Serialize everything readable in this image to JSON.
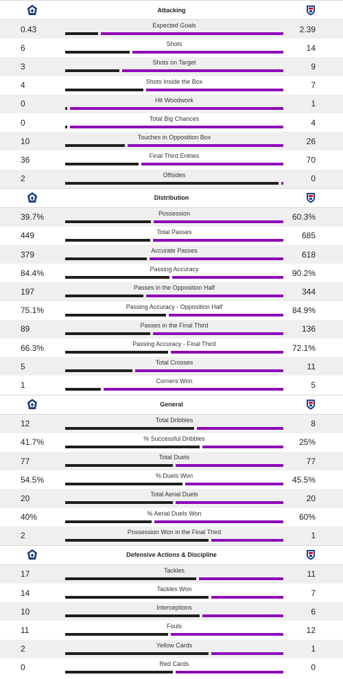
{
  "colors": {
    "home": "#1e1e1e",
    "away": "#8e05b6",
    "shade": "#efefef"
  },
  "icons": {
    "home_crest": "home-team-crest-icon",
    "away_crest": "away-team-crest-icon"
  },
  "sections": [
    {
      "title": "Attacking",
      "rows": [
        {
          "name": "Expected Goals",
          "home": "0.43",
          "away": "2.39",
          "h": 0.43,
          "a": 2.39
        },
        {
          "name": "Shots",
          "home": "6",
          "away": "14",
          "h": 6,
          "a": 14
        },
        {
          "name": "Shots on Target",
          "home": "3",
          "away": "9",
          "h": 3,
          "a": 9
        },
        {
          "name": "Shots Inside the Box",
          "home": "4",
          "away": "7",
          "h": 4,
          "a": 7
        },
        {
          "name": "Hit Woodwork",
          "home": "0",
          "away": "1",
          "h": 0,
          "a": 1
        },
        {
          "name": "Total Big Chances",
          "home": "0",
          "away": "4",
          "h": 0,
          "a": 4
        },
        {
          "name": "Touches in Opposition Box",
          "home": "10",
          "away": "26",
          "h": 10,
          "a": 26
        },
        {
          "name": "Final Third Entries",
          "home": "36",
          "away": "70",
          "h": 36,
          "a": 70
        },
        {
          "name": "Offsides",
          "home": "2",
          "away": "0",
          "h": 2,
          "a": 0
        }
      ]
    },
    {
      "title": "Distribution",
      "rows": [
        {
          "name": "Possession",
          "home": "39.7%",
          "away": "60.3%",
          "h": 39.7,
          "a": 60.3
        },
        {
          "name": "Total Passes",
          "home": "449",
          "away": "685",
          "h": 449,
          "a": 685
        },
        {
          "name": "Accurate Passes",
          "home": "379",
          "away": "618",
          "h": 379,
          "a": 618
        },
        {
          "name": "Passing Accuracy",
          "home": "84.4%",
          "away": "90.2%",
          "h": 84.4,
          "a": 90.2
        },
        {
          "name": "Passes in the Opposition Half",
          "home": "197",
          "away": "344",
          "h": 197,
          "a": 344
        },
        {
          "name": "Passing Accuracy - Opposition Half",
          "home": "75.1%",
          "away": "84.9%",
          "h": 75.1,
          "a": 84.9
        },
        {
          "name": "Passes in the Final Third",
          "home": "89",
          "away": "136",
          "h": 89,
          "a": 136
        },
        {
          "name": "Passing Accuracy - Final Third",
          "home": "66.3%",
          "away": "72.1%",
          "h": 66.3,
          "a": 72.1
        },
        {
          "name": "Total Crosses",
          "home": "5",
          "away": "11",
          "h": 5,
          "a": 11
        },
        {
          "name": "Corners Won",
          "home": "1",
          "away": "5",
          "h": 1,
          "a": 5
        }
      ]
    },
    {
      "title": "General",
      "rows": [
        {
          "name": "Total Dribbles",
          "home": "12",
          "away": "8",
          "h": 12,
          "a": 8
        },
        {
          "name": "% Successful Dribbles",
          "home": "41.7%",
          "away": "25%",
          "h": 41.7,
          "a": 25
        },
        {
          "name": "Total Duels",
          "home": "77",
          "away": "77",
          "h": 77,
          "a": 77
        },
        {
          "name": "% Duels Won",
          "home": "54.5%",
          "away": "45.5%",
          "h": 54.5,
          "a": 45.5
        },
        {
          "name": "Total Aerial Duels",
          "home": "20",
          "away": "20",
          "h": 20,
          "a": 20
        },
        {
          "name": "% Aerial Duels Won",
          "home": "40%",
          "away": "60%",
          "h": 40,
          "a": 60
        },
        {
          "name": "Possession Won in the Final Third",
          "home": "2",
          "away": "1",
          "h": 2,
          "a": 1
        }
      ]
    },
    {
      "title": "Defensive Actions & Discipline",
      "rows": [
        {
          "name": "Tackles",
          "home": "17",
          "away": "11",
          "h": 17,
          "a": 11
        },
        {
          "name": "Tackles Won",
          "home": "14",
          "away": "7",
          "h": 14,
          "a": 7
        },
        {
          "name": "Interceptions",
          "home": "10",
          "away": "6",
          "h": 10,
          "a": 6
        },
        {
          "name": "Fouls",
          "home": "11",
          "away": "12",
          "h": 11,
          "a": 12
        },
        {
          "name": "Yellow Cards",
          "home": "2",
          "away": "1",
          "h": 2,
          "a": 1
        },
        {
          "name": "Red Cards",
          "home": "0",
          "away": "0",
          "h": 0,
          "a": 0
        }
      ]
    }
  ]
}
